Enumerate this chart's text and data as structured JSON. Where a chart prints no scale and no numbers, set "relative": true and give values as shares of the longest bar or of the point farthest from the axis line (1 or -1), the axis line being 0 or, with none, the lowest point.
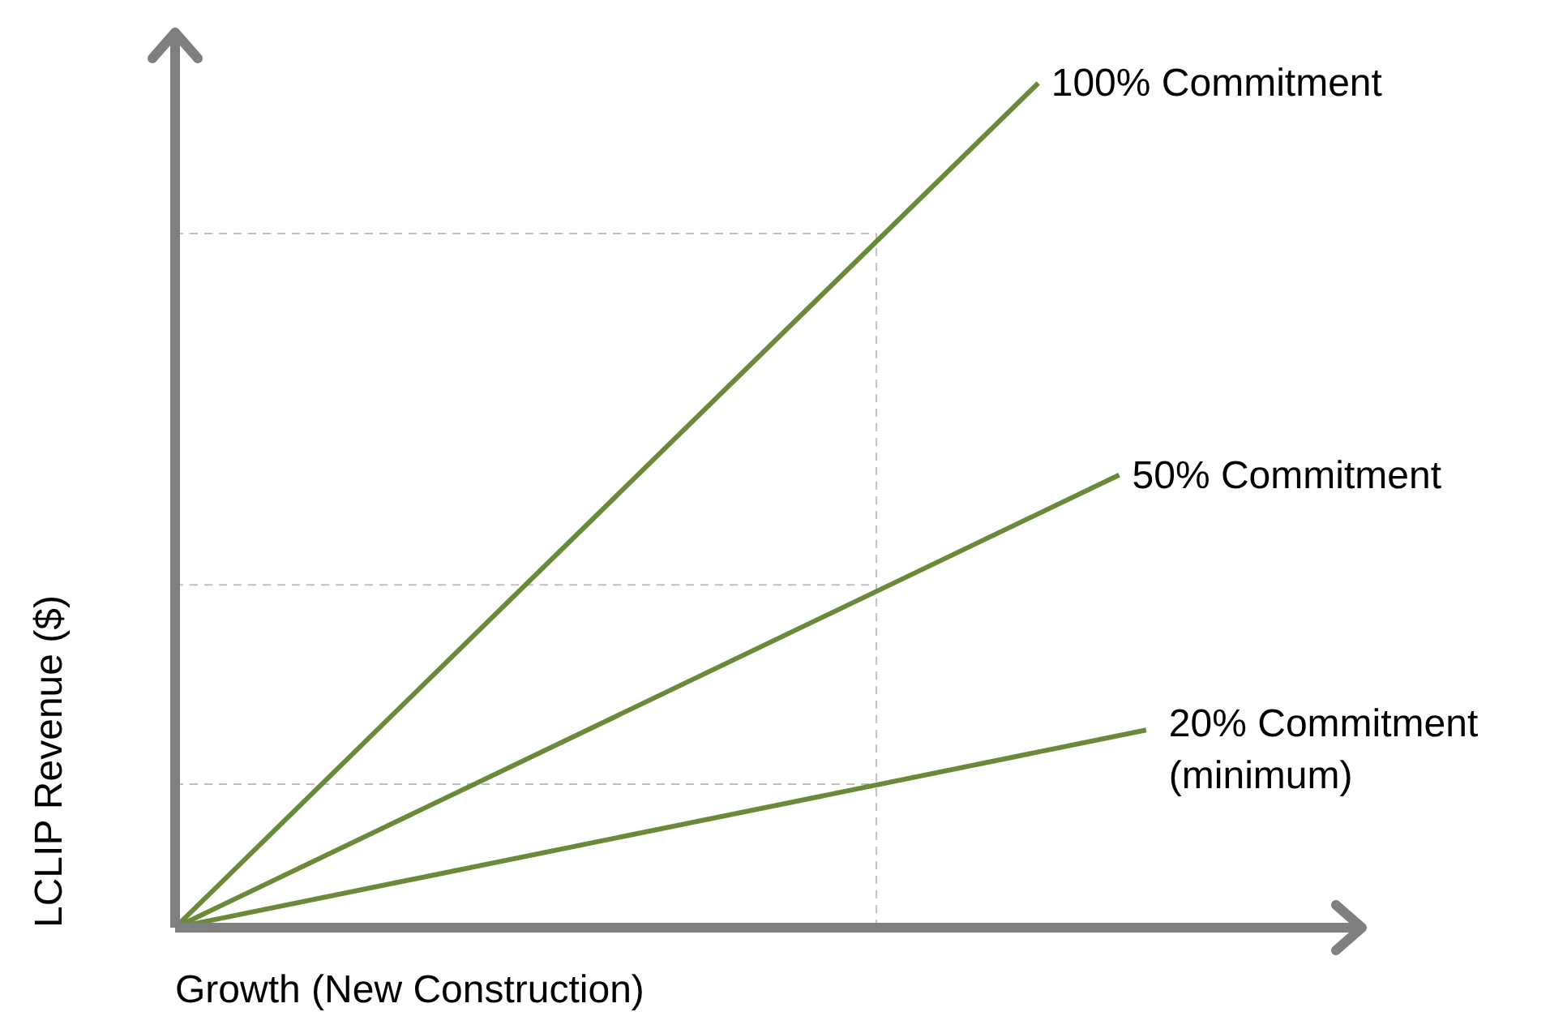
{
  "chart_data": {
    "type": "line",
    "relative": true,
    "xlabel": "Growth (New Construction)",
    "ylabel": "LCLIP Revenue ($)",
    "categories": [
      null,
      null,
      null,
      null,
      null,
      null,
      null,
      null,
      null,
      null,
      null,
      null,
      null,
      null,
      null,
      null,
      null,
      null,
      null,
      null,
      null,
      null,
      null,
      null,
      null,
      null,
      null,
      null,
      null,
      null,
      null,
      null,
      null,
      null,
      null,
      null,
      null,
      null,
      null,
      null,
      null,
      null,
      null,
      null,
      null
    ],
    "series": [
      {
        "name": "100% Commitment",
        "color": "#6a8a3a",
        "values": [
          0,
          null,
          null,
          null,
          null,
          null,
          null,
          null,
          null,
          null,
          null,
          null,
          null,
          null,
          null,
          null,
          null,
          null,
          null,
          null,
          null,
          null,
          null,
          null,
          null,
          null,
          null,
          null,
          null,
          null,
          null,
          null,
          1,
          null,
          null,
          null,
          null,
          null,
          null,
          null,
          null,
          null,
          null,
          null,
          null
        ]
      },
      {
        "name": "50% Commitment",
        "color": "#6a8a3a",
        "values": [
          0,
          null,
          null,
          null,
          null,
          null,
          null,
          null,
          null,
          null,
          null,
          null,
          null,
          null,
          null,
          null,
          null,
          null,
          null,
          null,
          null,
          null,
          null,
          null,
          null,
          null,
          null,
          null,
          null,
          null,
          null,
          null,
          null,
          null,
          null,
          0.536,
          null,
          null,
          null,
          null,
          null,
          null,
          null,
          null,
          null
        ]
      },
      {
        "name": "20% Commitment\n(minimum)",
        "color": "#6a8a3a",
        "values": [
          0,
          null,
          null,
          null,
          null,
          null,
          null,
          null,
          null,
          null,
          null,
          null,
          null,
          null,
          null,
          null,
          null,
          null,
          null,
          null,
          null,
          null,
          null,
          null,
          null,
          null,
          null,
          null,
          null,
          null,
          null,
          null,
          null,
          null,
          null,
          null,
          0.234,
          null,
          null,
          null,
          null,
          null,
          null,
          null,
          null
        ]
      }
    ],
    "ref_lines": [
      {
        "axis": "y",
        "value": 0.822,
        "color": "#bfbfbf",
        "line_style": "dashed"
      },
      {
        "axis": "y",
        "value": 0.406,
        "color": "#bfbfbf",
        "line_style": "dashed"
      },
      {
        "axis": "y",
        "value": 0.17,
        "color": "#bfbfbf",
        "line_style": "dashed"
      }
    ],
    "grid": false,
    "legend": false,
    "tick_labels": false,
    "marker": "none",
    "line_style": "solid"
  }
}
